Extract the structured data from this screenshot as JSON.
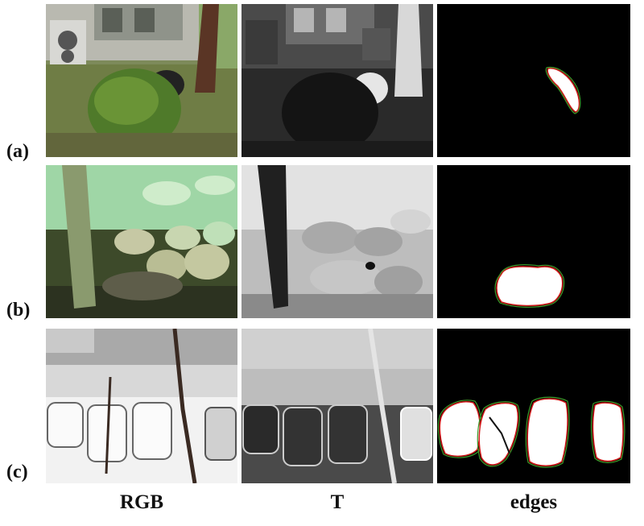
{
  "rows": [
    {
      "label": "(a)"
    },
    {
      "label": "(b)"
    },
    {
      "label": "(c)"
    }
  ],
  "columns": [
    {
      "label": "RGB"
    },
    {
      "label": "T"
    },
    {
      "label": "edges"
    }
  ],
  "colors": {
    "mask_fill": "#ffffff",
    "edge_red": "#d11a1a",
    "edge_green": "#3c9a2a",
    "background": "#000000"
  }
}
